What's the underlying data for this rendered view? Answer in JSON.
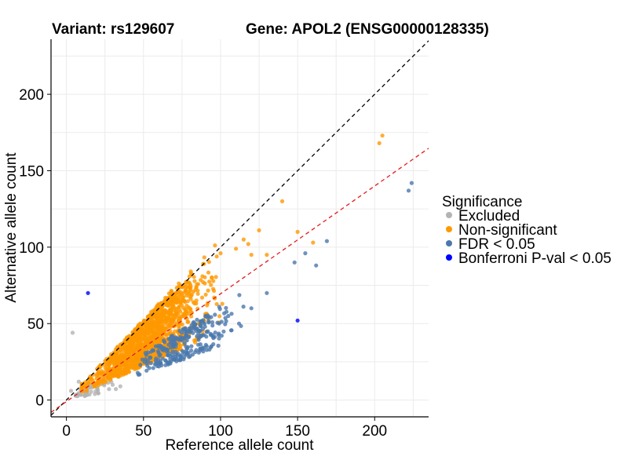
{
  "chart_data": {
    "type": "scatter",
    "title_left": "Variant: rs129607",
    "title_right": "Gene: APOL2 (ENSG00000128335)",
    "xlabel": "Reference allele count",
    "ylabel": "Alternative allele count",
    "xlim": [
      -10,
      235
    ],
    "ylim": [
      -11,
      236
    ],
    "xticks": [
      0,
      50,
      100,
      150,
      200
    ],
    "yticks": [
      0,
      50,
      100,
      150,
      200
    ],
    "grid": true,
    "reference_lines": [
      {
        "name": "identity",
        "slope": 1.0,
        "intercept": 0,
        "color": "#000000",
        "style": "dashed"
      },
      {
        "name": "fit",
        "slope": 0.705,
        "intercept": -1,
        "color": "#e41a1c",
        "style": "dashed"
      }
    ],
    "legend": {
      "title": "Significance",
      "position": "right",
      "entries": [
        {
          "label": "Excluded",
          "color": "#b3b3b3"
        },
        {
          "label": "Non-significant",
          "color": "#ff9900"
        },
        {
          "label": "FDR < 0.05",
          "color": "#4a78ad"
        },
        {
          "label": "Bonferroni P-val < 0.05",
          "color": "#0000ff"
        }
      ]
    },
    "series": [
      {
        "name": "Excluded",
        "color": "#b3b3b3",
        "cluster": {
          "count": 45,
          "x_range": [
            2,
            38
          ],
          "ratio_range": [
            0.2,
            0.6
          ],
          "seed": 11
        },
        "points": [
          [
            4,
            44
          ],
          [
            8,
            12
          ],
          [
            14,
            10
          ],
          [
            20,
            8
          ],
          [
            3,
            6
          ],
          [
            9,
            7
          ],
          [
            25,
            12
          ],
          [
            30,
            10
          ],
          [
            35,
            9
          ],
          [
            18,
            11
          ]
        ]
      },
      {
        "name": "Non-significant",
        "color": "#ff9900",
        "cluster": {
          "count": 1400,
          "x_range": [
            10,
            110
          ],
          "ratio_range": [
            0.45,
            1.05
          ],
          "seed": 23
        },
        "points": [
          [
            203,
            168
          ],
          [
            205,
            173
          ],
          [
            125,
            111
          ],
          [
            118,
            102
          ],
          [
            160,
            103
          ],
          [
            150,
            110
          ],
          [
            140,
            130
          ],
          [
            110,
            99
          ],
          [
            120,
            95
          ],
          [
            100,
            96
          ],
          [
            130,
            95
          ],
          [
            115,
            105
          ]
        ]
      },
      {
        "name": "FDR < 0.05",
        "color": "#4a78ad",
        "cluster": {
          "count": 260,
          "x_range": [
            40,
            125
          ],
          "ratio_range": [
            0.35,
            0.62
          ],
          "seed": 37
        },
        "points": [
          [
            222,
            137
          ],
          [
            224,
            142
          ],
          [
            169,
            104
          ],
          [
            162,
            88
          ],
          [
            155,
            96
          ],
          [
            148,
            90
          ],
          [
            120,
            60
          ],
          [
            130,
            70
          ],
          [
            112,
            50
          ],
          [
            105,
            55
          ]
        ]
      },
      {
        "name": "Bonferroni P-val < 0.05",
        "color": "#0000ff",
        "points": [
          [
            14,
            70
          ],
          [
            150,
            52
          ]
        ]
      }
    ]
  }
}
